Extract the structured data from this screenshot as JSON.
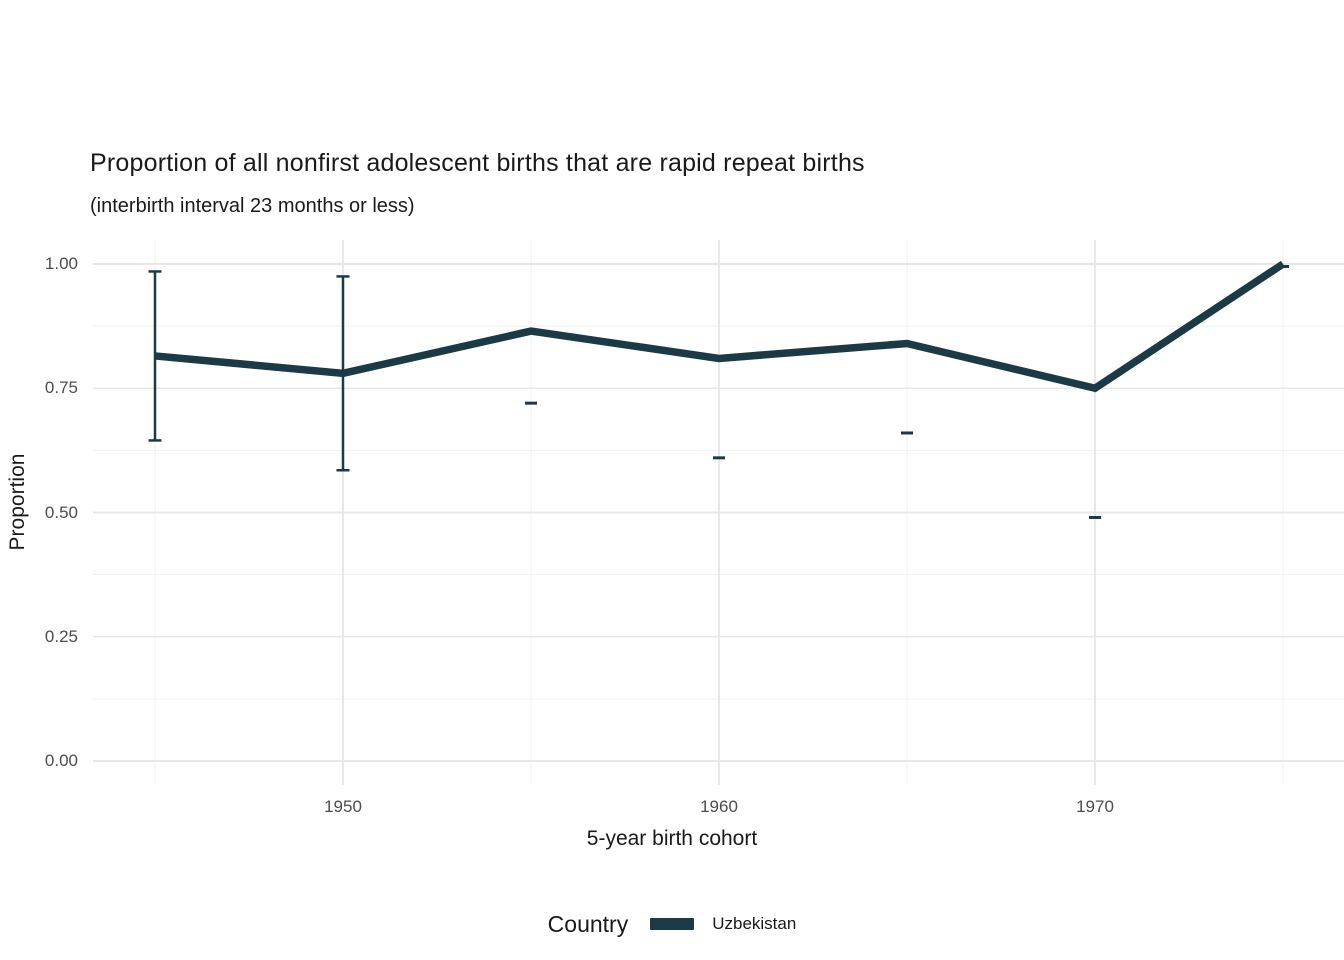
{
  "header": {
    "title": "Proportion of all nonfirst adolescent births that are rapid repeat births",
    "subtitle": "(interbirth interval 23 months or less)"
  },
  "axes": {
    "x_title": "5-year birth cohort",
    "y_title": "Proportion"
  },
  "legend": {
    "title": "Country",
    "items": [
      {
        "label": "Uzbekistan",
        "color": "#1c3a45"
      }
    ]
  },
  "chart_data": {
    "type": "line",
    "title": "Proportion of all nonfirst adolescent births that are rapid repeat births",
    "subtitle": "(interbirth interval 23 months or less)",
    "xlabel": "5-year birth cohort",
    "ylabel": "Proportion",
    "x": [
      1945,
      1950,
      1955,
      1960,
      1965,
      1970,
      1975
    ],
    "series": [
      {
        "name": "Uzbekistan",
        "values": [
          0.815,
          0.78,
          0.865,
          0.81,
          0.84,
          0.75,
          1.0
        ],
        "ci_lower": [
          0.645,
          0.585,
          0.72,
          0.61,
          0.66,
          0.49,
          0.995
        ],
        "ci_upper": [
          0.985,
          0.975,
          null,
          null,
          null,
          null,
          null
        ],
        "errorbar_style": [
          "full",
          "full",
          "dash-lower",
          "dash-lower",
          "dash-lower",
          "dash-lower",
          "dash-lower"
        ]
      }
    ],
    "ylim": [
      0,
      1
    ],
    "yticks": [
      0.0,
      0.25,
      0.5,
      0.75,
      1.0
    ],
    "ytick_labels": [
      "0.00",
      "0.25",
      "0.50",
      "0.75",
      "1.00"
    ],
    "yticks_minor": [
      0.125,
      0.375,
      0.625,
      0.875
    ],
    "xticks": [
      1950,
      1960,
      1970
    ],
    "xtick_labels": [
      "1950",
      "1960",
      "1970"
    ],
    "xticks_minor": [
      1945,
      1955,
      1965,
      1975
    ],
    "grid": "major+minor horizontal+vertical, white panel",
    "legend_position": "bottom",
    "colors": {
      "line": "#1c3a45",
      "grid_major": "#e8e8e8",
      "grid_minor": "#f2f2f2",
      "tick_label": "#4d4d4d",
      "text": "#1a1a1a"
    }
  }
}
